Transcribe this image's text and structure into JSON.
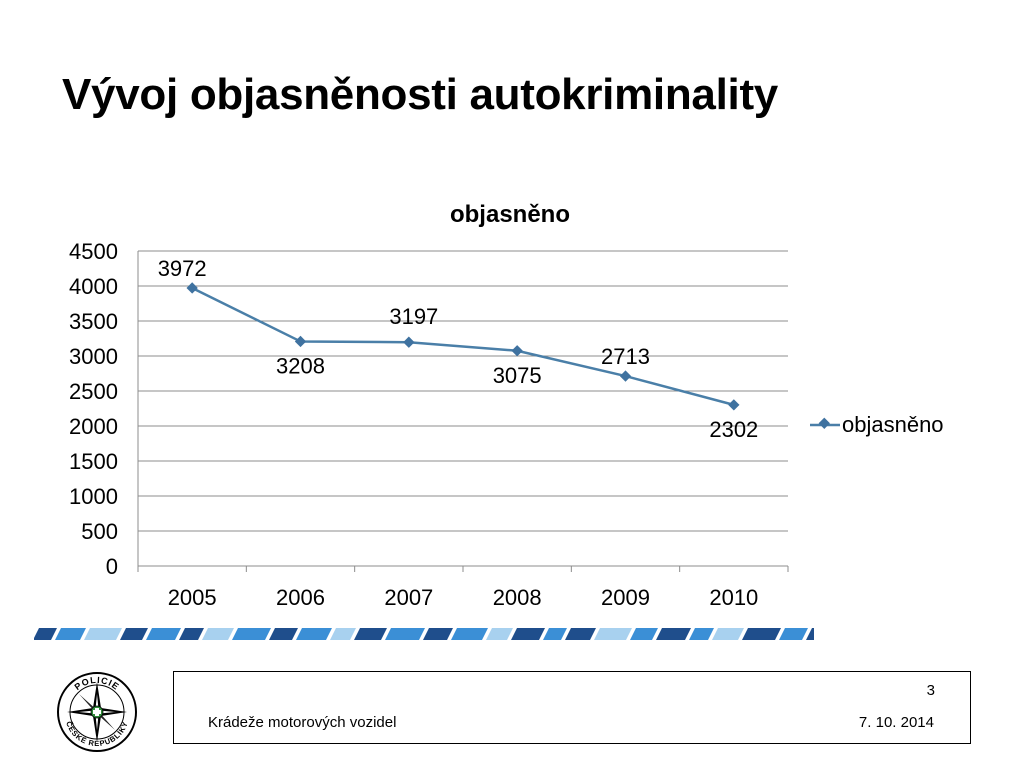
{
  "slide": {
    "title": "Vývoj objasněnosti autokriminality"
  },
  "chart_data": {
    "type": "line",
    "title": "objasněno",
    "categories": [
      "2005",
      "2006",
      "2007",
      "2008",
      "2009",
      "2010"
    ],
    "series": [
      {
        "name": "objasněno",
        "values": [
          3972,
          3208,
          3197,
          3075,
          2713,
          2302
        ]
      }
    ],
    "ylim": [
      0,
      4500
    ],
    "yticks": [
      0,
      500,
      1000,
      1500,
      2000,
      2500,
      3000,
      3500,
      4000,
      4500
    ],
    "grid": true,
    "legend_position": "right",
    "data_labels": true,
    "colors": {
      "line": "#4a7fa8",
      "marker": "#3f72a0",
      "grid": "#8c8c8c"
    }
  },
  "footer": {
    "page_number": "3",
    "presentation_title": "Krádeže motorových vozidel",
    "date": "7. 10. 2014"
  },
  "logo": {
    "icon": "police-czech-republic-star-badge",
    "text": "POLICIE ČESKÉ REPUBLIKY"
  },
  "decor": {
    "stripe_colors": [
      "#1f4e8c",
      "#3b8fd6",
      "#a8d1ef"
    ]
  }
}
